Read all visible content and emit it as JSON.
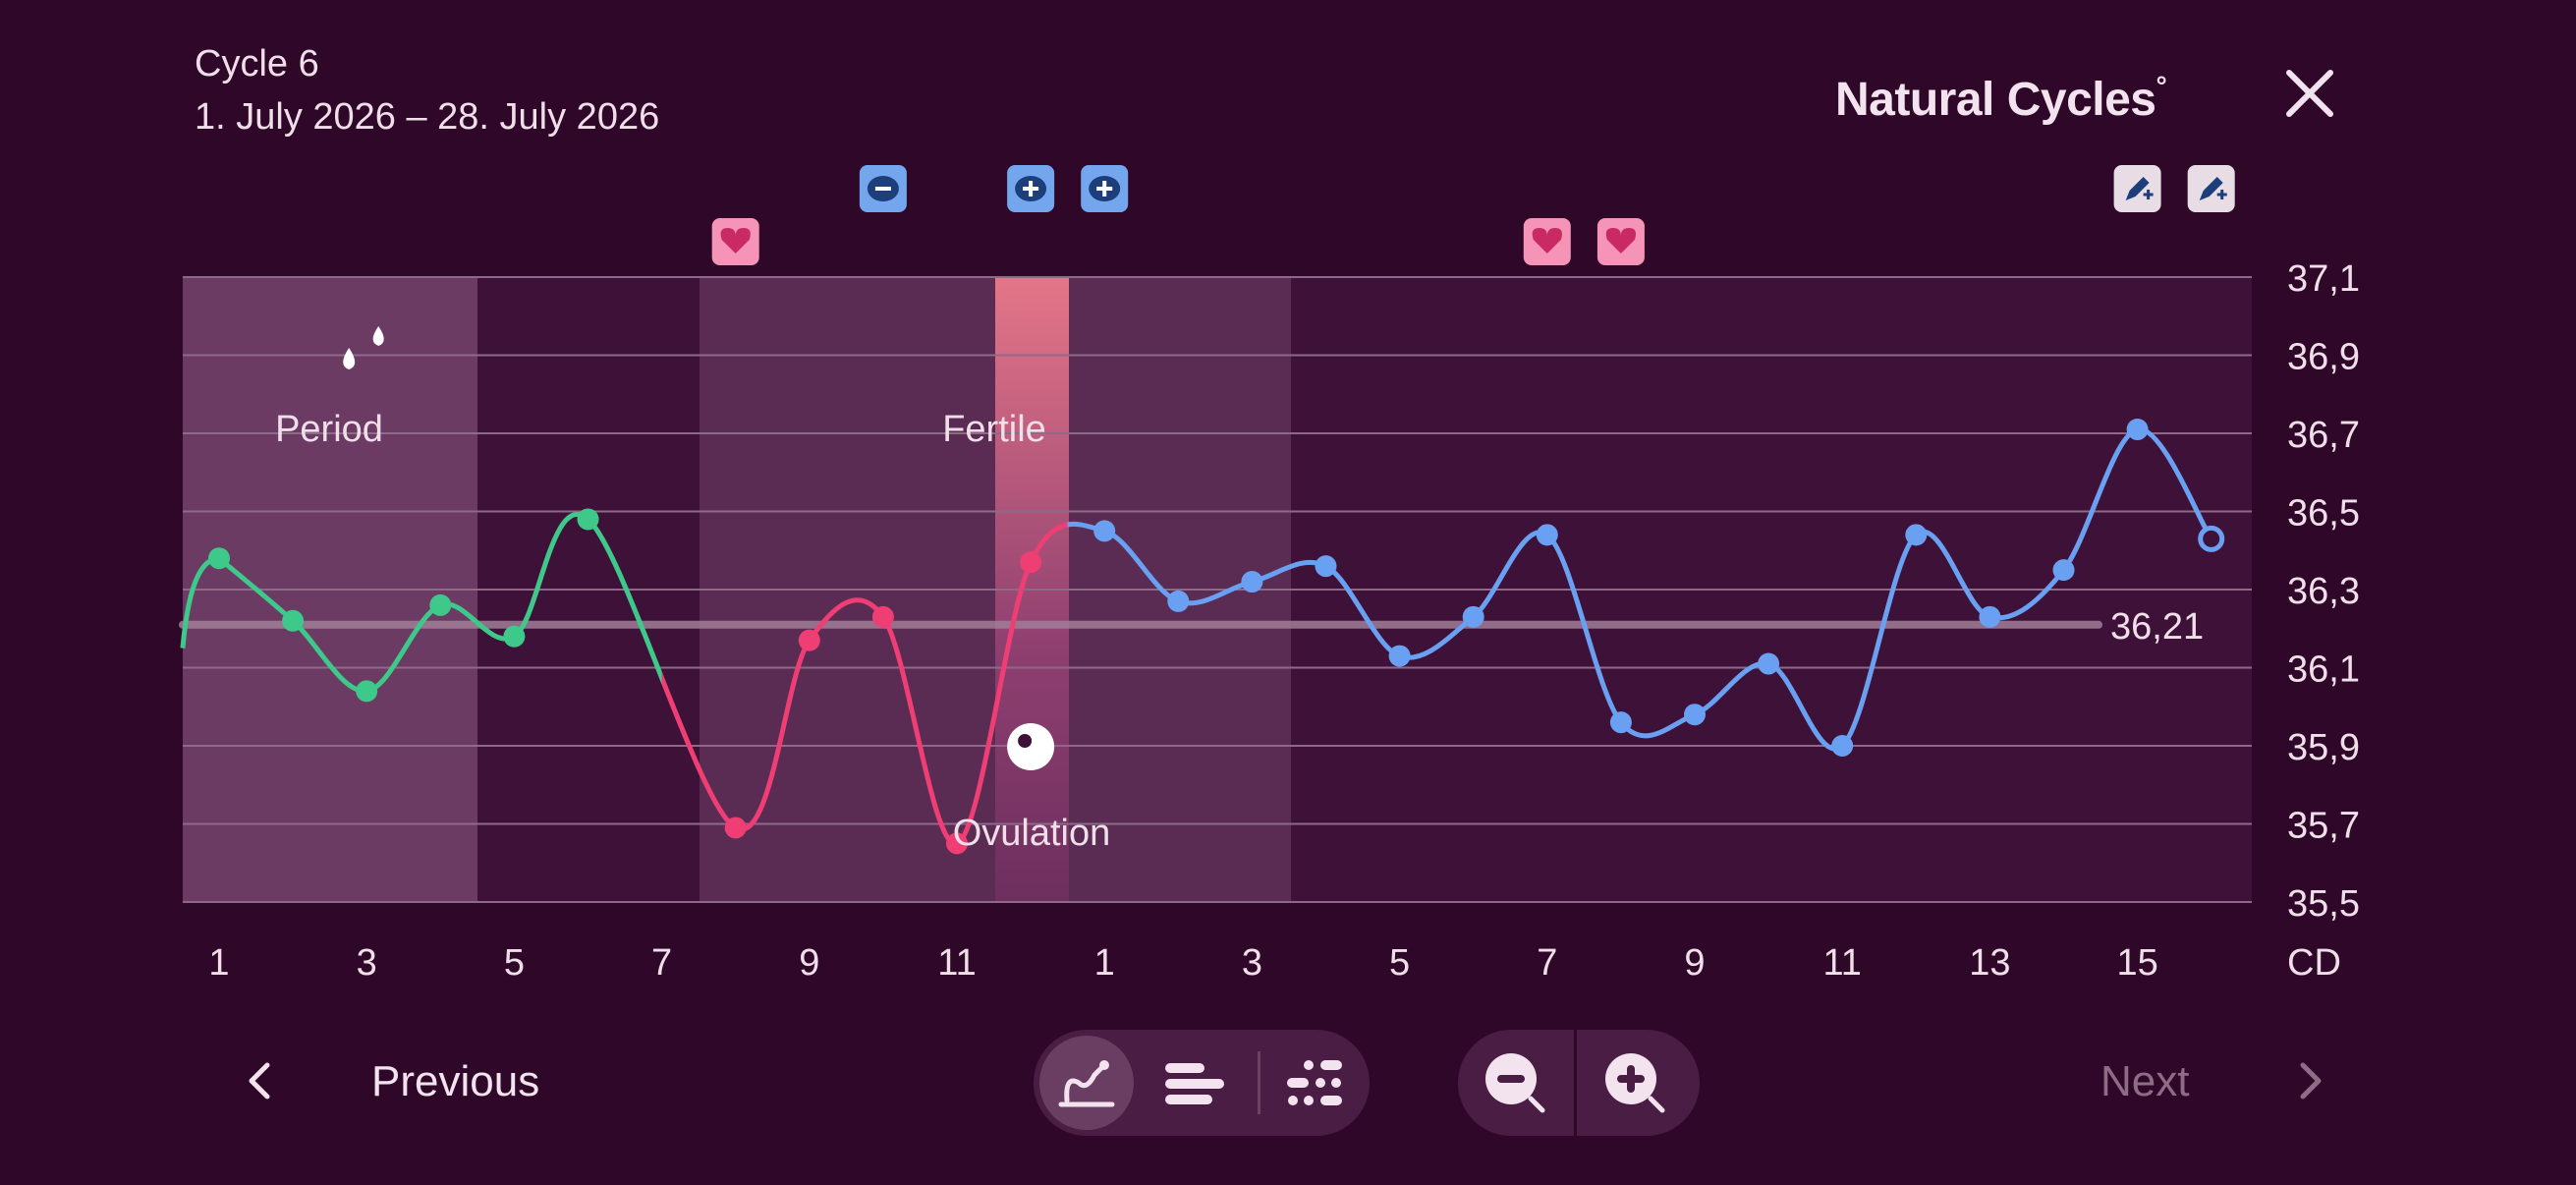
{
  "header": {
    "cycle_label": "Cycle 6",
    "date_range": "1. July 2026 – 28. July 2026",
    "brand": "Natural Cycles",
    "brand_mark": "°"
  },
  "nav": {
    "previous_label": "Previous",
    "next_label": "Next"
  },
  "colors": {
    "background": "#2f0829",
    "period_line": "#3ec98a",
    "fertile_line": "#ee3e74",
    "infertile_line": "#6aa0f2",
    "ovulation_band": "#e47688",
    "coverline": "#a17e98"
  },
  "chart_data": {
    "type": "line",
    "ylim": [
      35.5,
      37.1
    ],
    "yticks": [
      "37,1",
      "36,9",
      "36,7",
      "36,5",
      "36,3",
      "36,1",
      "35,9",
      "35,7",
      "35,5"
    ],
    "xtick_labels": [
      "1",
      "3",
      "5",
      "7",
      "9",
      "11",
      "1",
      "3",
      "5",
      "7",
      "9",
      "11",
      "13",
      "15"
    ],
    "x_unit_label": "CD",
    "coverline": {
      "value": 36.21,
      "label": "36,21"
    },
    "phase_labels": {
      "period": "Period",
      "fertile": "Fertile",
      "ovulation": "Ovulation"
    },
    "series": [
      {
        "color": "#3ec98a",
        "x": [
          1,
          2,
          3,
          4,
          5,
          6
        ],
        "y": [
          36.38,
          36.22,
          36.04,
          36.26,
          36.18,
          36.48
        ]
      },
      {
        "color": "#ee3e74",
        "x": [
          8,
          9,
          10,
          11,
          12
        ],
        "y": [
          35.69,
          36.17,
          36.23,
          35.65,
          36.37
        ]
      },
      {
        "color": "#6aa0f2",
        "x": [
          13,
          14,
          15,
          16,
          17,
          18,
          19,
          20,
          21,
          22,
          23,
          24,
          25,
          26,
          27,
          28
        ],
        "y": [
          36.45,
          36.27,
          36.32,
          36.36,
          36.13,
          36.23,
          36.44,
          35.96,
          35.98,
          36.11,
          35.9,
          36.44,
          36.23,
          36.35,
          36.71,
          36.43
        ]
      }
    ],
    "open_point": {
      "x": 28,
      "y": 36.43
    },
    "markers": {
      "hearts": [
        8,
        19,
        20
      ],
      "minus_tests": [
        10
      ],
      "plus_tests": [
        12,
        13
      ],
      "pen_icons": [
        27,
        28
      ],
      "drops": [
        3
      ],
      "ovulation_egg": [
        12
      ]
    }
  }
}
